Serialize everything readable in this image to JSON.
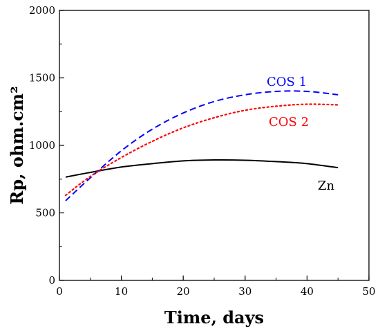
{
  "chart_data": {
    "type": "line",
    "xlabel": "Time, days",
    "ylabel": "Rp, ohm.cm²",
    "xlim": [
      0,
      50
    ],
    "ylim": [
      0,
      2000
    ],
    "x_ticks": [
      0,
      10,
      20,
      30,
      40,
      50
    ],
    "y_ticks": [
      0,
      500,
      1000,
      1500,
      2000
    ],
    "grid": false,
    "series": [
      {
        "name": "COS 1",
        "color": "#0000ff",
        "style": "dashed",
        "x": [
          1,
          5,
          10,
          15,
          20,
          25,
          30,
          35,
          40,
          45
        ],
        "y": [
          590,
          760,
          960,
          1120,
          1240,
          1325,
          1375,
          1400,
          1400,
          1375
        ]
      },
      {
        "name": "COS 2",
        "color": "#ff0000",
        "style": "dotted",
        "x": [
          1,
          5,
          10,
          15,
          20,
          25,
          30,
          35,
          40,
          45
        ],
        "y": [
          630,
          770,
          910,
          1030,
          1130,
          1205,
          1260,
          1290,
          1305,
          1300
        ]
      },
      {
        "name": "Zn",
        "color": "#000000",
        "style": "solid",
        "x": [
          1,
          5,
          10,
          15,
          20,
          25,
          30,
          35,
          40,
          45
        ],
        "y": [
          765,
          800,
          840,
          865,
          885,
          892,
          890,
          880,
          865,
          835
        ]
      }
    ]
  }
}
